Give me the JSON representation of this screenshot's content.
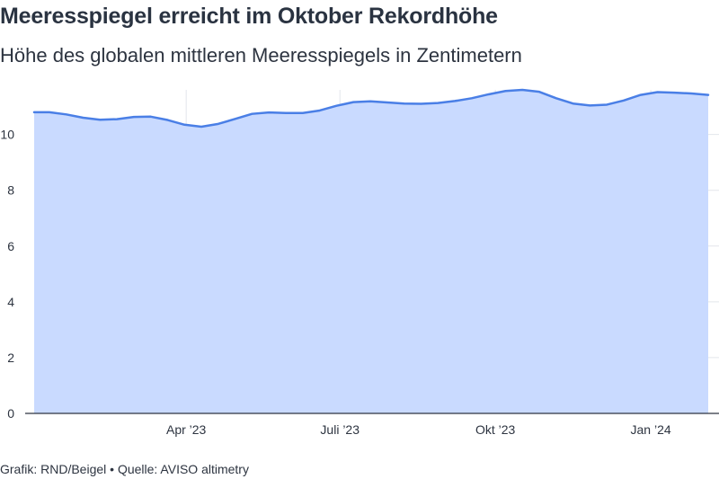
{
  "title": "Meeresspiegel erreicht im Oktober Rekordhöhe",
  "subtitle": "Höhe des globalen mittleren Meeresspiegels in Zentimetern",
  "footer": {
    "credit": "Grafik: RND/Beigel",
    "separator": "•",
    "source": "Quelle: AVISO altimetry"
  },
  "colors": {
    "line": "#4a7fe6",
    "area": "#c9daff",
    "grid": "#e3e6eb",
    "axis": "#2d3440"
  },
  "chart_data": {
    "type": "area",
    "title": "Meeresspiegel erreicht im Oktober Rekordhöhe",
    "subtitle": "Höhe des globalen mittleren Meeresspiegels in Zentimetern",
    "xlabel": "",
    "ylabel": "",
    "ylim": [
      0,
      11.6
    ],
    "y_ticks": [
      0,
      2,
      4,
      6,
      8,
      10
    ],
    "x_ticks": [
      {
        "label": "Apr ’23",
        "date": "2023-04-01"
      },
      {
        "label": "Juli ’23",
        "date": "2023-07-01"
      },
      {
        "label": "Okt ’23",
        "date": "2023-10-01"
      },
      {
        "label": "Jan ’24",
        "date": "2024-01-01"
      }
    ],
    "grid": true,
    "legend": "none",
    "series": [
      {
        "x": [
          "2023-01-01",
          "2023-01-10",
          "2023-01-20",
          "2023-01-30",
          "2023-02-09",
          "2023-02-19",
          "2023-03-01",
          "2023-03-11",
          "2023-03-21",
          "2023-03-31",
          "2023-04-10",
          "2023-04-20",
          "2023-04-30",
          "2023-05-10",
          "2023-05-20",
          "2023-05-30",
          "2023-06-09",
          "2023-06-19",
          "2023-06-29",
          "2023-07-09",
          "2023-07-19",
          "2023-07-29",
          "2023-08-08",
          "2023-08-18",
          "2023-08-28",
          "2023-09-07",
          "2023-09-17",
          "2023-09-27",
          "2023-10-07",
          "2023-10-17",
          "2023-10-27",
          "2023-11-06",
          "2023-11-16",
          "2023-11-26",
          "2023-12-06",
          "2023-12-16",
          "2023-12-26",
          "2024-01-05",
          "2024-01-15",
          "2024-01-25",
          "2024-02-04"
        ],
        "values": [
          10.8,
          10.8,
          10.72,
          10.6,
          10.53,
          10.55,
          10.63,
          10.64,
          10.52,
          10.35,
          10.28,
          10.38,
          10.56,
          10.74,
          10.79,
          10.77,
          10.77,
          10.86,
          11.03,
          11.16,
          11.19,
          11.15,
          11.11,
          11.1,
          11.13,
          11.2,
          11.3,
          11.44,
          11.56,
          11.6,
          11.53,
          11.3,
          11.11,
          11.04,
          11.07,
          11.22,
          11.42,
          11.52,
          11.5,
          11.47,
          11.42
        ]
      }
    ]
  }
}
